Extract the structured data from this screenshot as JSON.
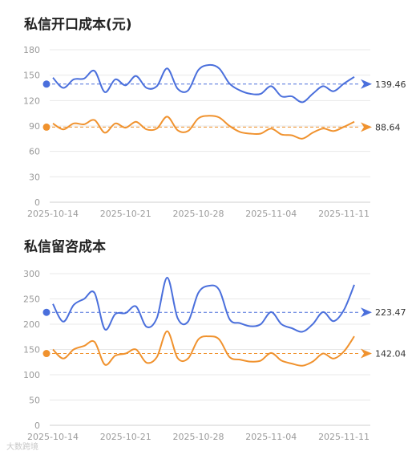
{
  "chart_data": [
    {
      "type": "line",
      "title": "私信开口成本(元)",
      "xlabel": "",
      "ylabel": "",
      "ylim": [
        0,
        180
      ],
      "y_ticks": [
        0,
        30,
        60,
        90,
        120,
        150,
        180
      ],
      "x_ticks": [
        "2025-10-14",
        "2025-10-21",
        "2025-10-28",
        "2025-11-04",
        "2025-11-11"
      ],
      "grid": true,
      "x": [
        "2025-10-14",
        "2025-10-15",
        "2025-10-16",
        "2025-10-17",
        "2025-10-18",
        "2025-10-19",
        "2025-10-20",
        "2025-10-21",
        "2025-10-22",
        "2025-10-23",
        "2025-10-24",
        "2025-10-25",
        "2025-10-26",
        "2025-10-27",
        "2025-10-28",
        "2025-10-29",
        "2025-10-30",
        "2025-10-31",
        "2025-11-01",
        "2025-11-02",
        "2025-11-03",
        "2025-11-04",
        "2025-11-05",
        "2025-11-06",
        "2025-11-07",
        "2025-11-08",
        "2025-11-09",
        "2025-11-10",
        "2025-11-11",
        "2025-11-12"
      ],
      "series": [
        {
          "color": "#4a6fdc",
          "values": [
            147,
            135,
            145,
            146,
            155,
            130,
            145,
            138,
            149,
            135,
            137,
            158,
            134,
            132,
            156,
            162,
            158,
            140,
            132,
            128,
            128,
            137,
            125,
            125,
            118,
            128,
            137,
            131,
            140,
            148
          ],
          "reference": 139.46,
          "reference_label": "139.46"
        },
        {
          "color": "#f0922e",
          "values": [
            93,
            86,
            93,
            92,
            97,
            82,
            93,
            88,
            95,
            86,
            87,
            101,
            85,
            84,
            99,
            102,
            100,
            90,
            83,
            81,
            81,
            87,
            80,
            79,
            75,
            82,
            87,
            84,
            89,
            95
          ],
          "reference": 88.64,
          "reference_label": "88.64"
        }
      ]
    },
    {
      "type": "line",
      "title": "私信留咨成本",
      "xlabel": "",
      "ylabel": "",
      "ylim": [
        0,
        300
      ],
      "y_ticks": [
        0,
        50,
        100,
        150,
        200,
        250,
        300
      ],
      "x_ticks": [
        "2025-10-14",
        "2025-10-21",
        "2025-10-28",
        "2025-11-04",
        "2025-11-11"
      ],
      "grid": true,
      "x": [
        "2025-10-14",
        "2025-10-15",
        "2025-10-16",
        "2025-10-17",
        "2025-10-18",
        "2025-10-19",
        "2025-10-20",
        "2025-10-21",
        "2025-10-22",
        "2025-10-23",
        "2025-10-24",
        "2025-10-25",
        "2025-10-26",
        "2025-10-27",
        "2025-10-28",
        "2025-10-29",
        "2025-10-30",
        "2025-10-31",
        "2025-11-01",
        "2025-11-02",
        "2025-11-03",
        "2025-11-04",
        "2025-11-05",
        "2025-11-06",
        "2025-11-07",
        "2025-11-08",
        "2025-11-09",
        "2025-11-10",
        "2025-11-11",
        "2025-11-12"
      ],
      "series": [
        {
          "color": "#4a6fdc",
          "values": [
            240,
            205,
            238,
            250,
            262,
            190,
            220,
            222,
            235,
            195,
            212,
            292,
            212,
            205,
            262,
            276,
            268,
            210,
            202,
            196,
            200,
            224,
            200,
            192,
            185,
            200,
            224,
            206,
            228,
            278
          ],
          "reference": 223.47,
          "reference_label": "223.47"
        },
        {
          "color": "#f0922e",
          "values": [
            150,
            132,
            150,
            157,
            165,
            120,
            138,
            142,
            150,
            124,
            135,
            186,
            133,
            132,
            170,
            176,
            170,
            135,
            130,
            126,
            128,
            143,
            128,
            122,
            118,
            126,
            142,
            132,
            146,
            176
          ],
          "reference": 142.04,
          "reference_label": "142.04"
        }
      ]
    }
  ],
  "watermark": "大数跨境"
}
